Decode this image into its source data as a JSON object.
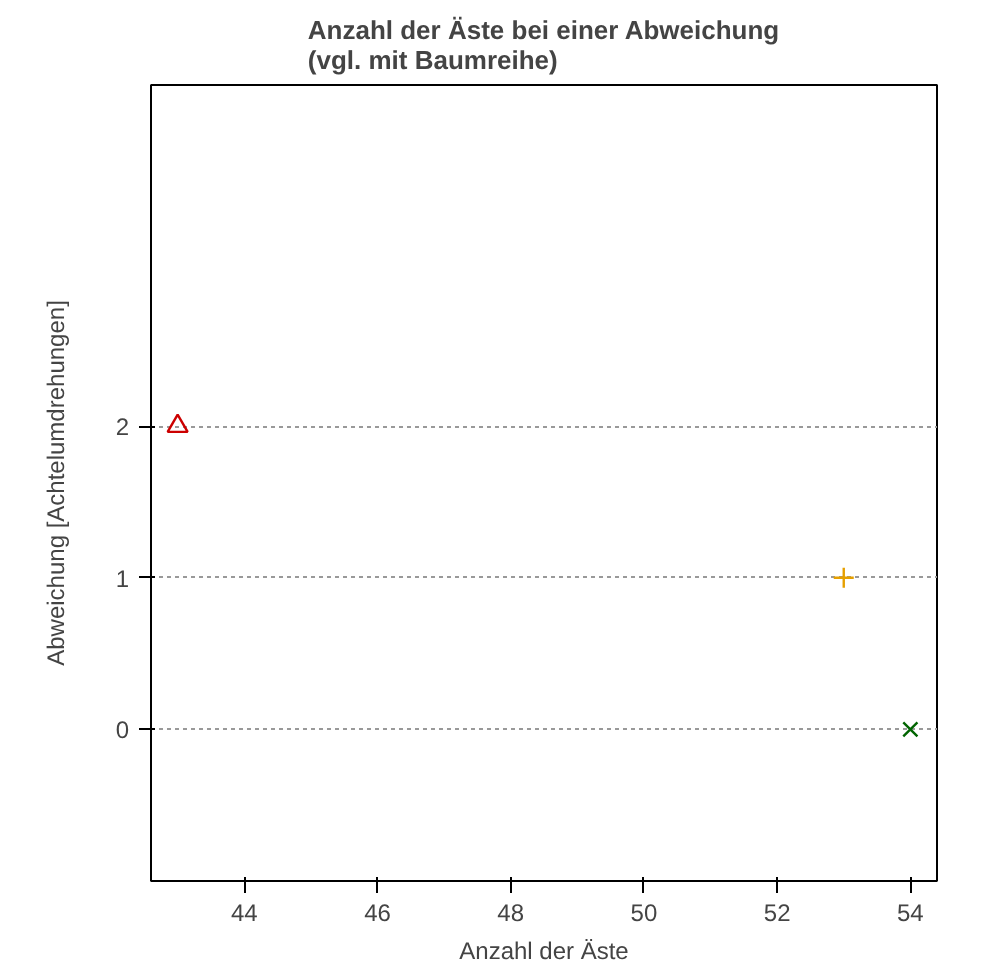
{
  "chart_data": {
    "type": "scatter",
    "title": "Anzahl der Äste bei einer Abweichung\n(vgl. mit Baumreihe)",
    "xlabel": "Anzahl der Äste",
    "ylabel": "Abweichung [Achtelumdrehungen]",
    "xlim": [
      42.6,
      54.4
    ],
    "xticks": [
      44,
      46,
      48,
      50,
      52,
      54
    ],
    "ylim": [
      -1,
      4.25
    ],
    "yticks": [
      0,
      1,
      2
    ],
    "grid": "y",
    "series": [
      {
        "x": [
          43
        ],
        "values": [
          2
        ],
        "color": "#cc0000",
        "marker": "triangle"
      },
      {
        "x": [
          53
        ],
        "values": [
          1
        ],
        "color": "#e6a000",
        "marker": "cross"
      },
      {
        "x": [
          54
        ],
        "values": [
          0
        ],
        "color": "#006400",
        "marker": "x"
      }
    ]
  }
}
